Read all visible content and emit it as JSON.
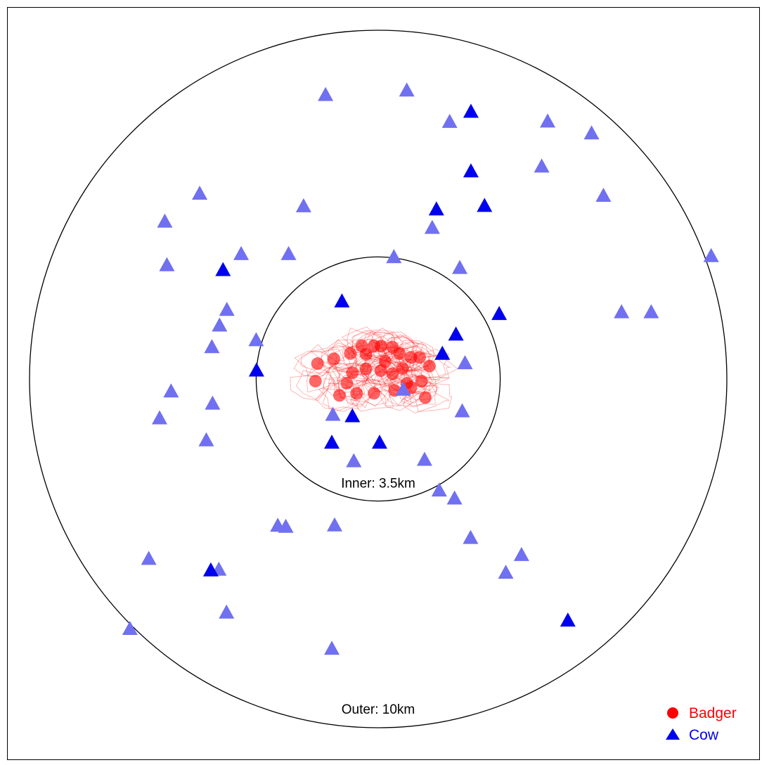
{
  "chart_data": {
    "type": "scatter",
    "title": "",
    "xlabel": "",
    "ylabel": "",
    "grid": false,
    "legend_placement": "bottom-right",
    "colors": {
      "badger": "#ff0000",
      "cow_dark": "#0000ee",
      "cow_light": "#7070f0",
      "ring": "#000000"
    },
    "rings": [
      {
        "name": "inner",
        "radius_km": 3.5,
        "label": "Inner:  3.5km"
      },
      {
        "name": "outer",
        "radius_km": 10,
        "label": "Outer:  10km"
      }
    ],
    "series": [
      {
        "name": "Badger",
        "marker": "circle",
        "points": [
          [
            -1.74,
            0.44
          ],
          [
            -1.27,
            0.58
          ],
          [
            -0.8,
            0.73
          ],
          [
            -0.47,
            0.95
          ],
          [
            -0.35,
            0.71
          ],
          [
            -0.12,
            0.95
          ],
          [
            0.08,
            0.94
          ],
          [
            0.41,
            0.91
          ],
          [
            0.61,
            0.73
          ],
          [
            0.94,
            0.62
          ],
          [
            1.19,
            0.62
          ],
          [
            1.47,
            0.37
          ],
          [
            -0.74,
            0.18
          ],
          [
            -0.35,
            0.29
          ],
          [
            0.08,
            0.24
          ],
          [
            0.41,
            0.15
          ],
          [
            0.82,
            -0.12
          ],
          [
            1.24,
            -0.06
          ],
          [
            -1.11,
            -0.47
          ],
          [
            -0.62,
            -0.41
          ],
          [
            -0.12,
            -0.41
          ],
          [
            0.47,
            -0.33
          ],
          [
            0.94,
            -0.24
          ],
          [
            1.35,
            -0.53
          ],
          [
            -1.8,
            -0.06
          ],
          [
            -0.9,
            -0.12
          ],
          [
            0.2,
            0.5
          ],
          [
            0.7,
            0.3
          ]
        ]
      },
      {
        "name": "Cow",
        "marker": "triangle",
        "points_dark": [
          [
            -4.45,
            3.12
          ],
          [
            -3.49,
            0.24
          ],
          [
            -0.74,
            -1.07
          ],
          [
            -1.33,
            -1.83
          ],
          [
            0.04,
            -1.83
          ],
          [
            3.47,
            1.86
          ],
          [
            2.23,
            1.27
          ],
          [
            1.84,
            0.72
          ],
          [
            1.67,
            4.86
          ],
          [
            2.66,
            7.66
          ],
          [
            2.66,
            5.95
          ],
          [
            3.05,
            4.96
          ],
          [
            -1.04,
            2.22
          ],
          [
            -4.8,
            -5.49
          ],
          [
            5.44,
            -6.93
          ]
        ],
        "points_light": [
          [
            -1.51,
            8.14
          ],
          [
            0.82,
            8.27
          ],
          [
            -6.12,
            4.51
          ],
          [
            -5.12,
            5.31
          ],
          [
            -6.06,
            3.26
          ],
          [
            -4.34,
            1.98
          ],
          [
            -5.94,
            -0.36
          ],
          [
            -4.77,
            0.91
          ],
          [
            -4.55,
            1.53
          ],
          [
            -4.75,
            -0.71
          ],
          [
            -6.27,
            -1.13
          ],
          [
            -4.93,
            -1.76
          ],
          [
            -3.93,
            3.58
          ],
          [
            -2.14,
            4.95
          ],
          [
            -0.7,
            -2.36
          ],
          [
            -2.65,
            -4.24
          ],
          [
            -1.25,
            -4.2
          ],
          [
            -2.88,
            -4.21
          ],
          [
            -7.12,
            -7.17
          ],
          [
            -6.58,
            -5.16
          ],
          [
            -4.57,
            -5.47
          ],
          [
            -4.35,
            -6.7
          ],
          [
            -1.33,
            -7.74
          ],
          [
            1.33,
            -2.32
          ],
          [
            1.75,
            -3.2
          ],
          [
            2.19,
            -3.43
          ],
          [
            2.65,
            -4.56
          ],
          [
            4.11,
            -5.05
          ],
          [
            3.66,
            -5.56
          ],
          [
            2.49,
            0.45
          ],
          [
            2.41,
            -0.93
          ],
          [
            0.72,
            -0.31
          ],
          [
            0.45,
            3.49
          ],
          [
            2.34,
            3.18
          ],
          [
            1.55,
            4.33
          ],
          [
            2.05,
            7.37
          ],
          [
            4.86,
            7.38
          ],
          [
            6.12,
            7.04
          ],
          [
            4.69,
            6.09
          ],
          [
            6.46,
            5.25
          ],
          [
            9.55,
            3.52
          ],
          [
            6.98,
            1.91
          ],
          [
            7.83,
            1.91
          ],
          [
            -2.57,
            3.58
          ],
          [
            -1.3,
            -1.03
          ],
          [
            -3.5,
            1.11
          ]
        ]
      }
    ],
    "legend": [
      {
        "label": "Badger",
        "color": "#ff0000",
        "marker": "circle"
      },
      {
        "label": "Cow",
        "color": "#0000ee",
        "marker": "triangle"
      }
    ]
  }
}
